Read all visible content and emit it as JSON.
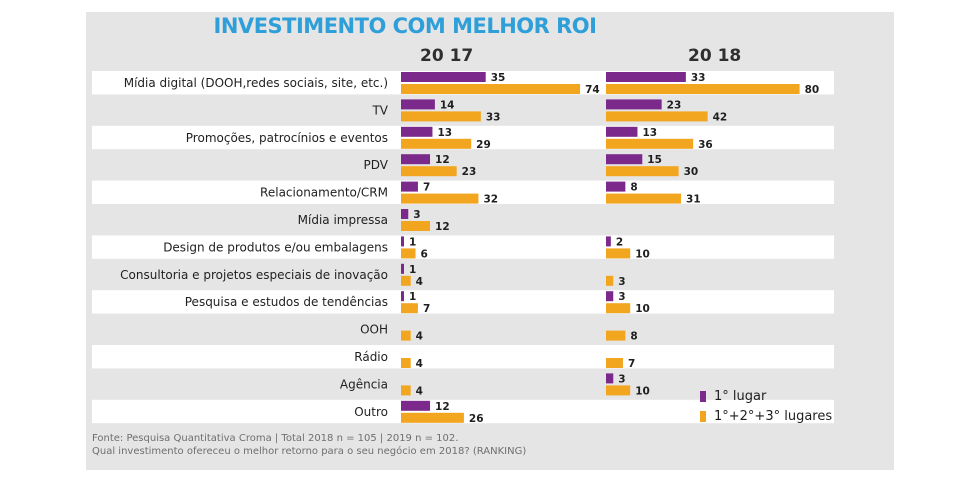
{
  "title": "INVESTIMENTO COM MELHOR ROI",
  "colors": {
    "first_place": "#7b2a8b",
    "top_three": "#f2a51f",
    "title": "#2e9fd9",
    "stripe": "#ffffff"
  },
  "legend": {
    "first_place": "1° lugar",
    "top_three": "1°+2°+3° lugares"
  },
  "source": {
    "line1": "Fonte: Pesquisa Quantitativa Croma | Total  2018 n = 105 | 2019 n = 102.",
    "line2": "Qual investimento ofereceu o melhor retorno para o seu negócio em 2018? (RANKING)"
  },
  "chart_data": {
    "type": "bar",
    "orientation": "horizontal",
    "title": "INVESTIMENTO COM MELHOR ROI",
    "categories": [
      "Mídia digital (DOOH,redes sociais, site, etc.)",
      "TV",
      "Promoções, patrocínios e eventos",
      "PDV",
      "Relacionamento/CRM",
      "Mídia impressa",
      "Design de produtos e/ou embalagens",
      "Consultoria e projetos especiais de inovação",
      "Pesquisa e estudos de tendências",
      "OOH",
      "Rádio",
      "Agência",
      "Outro"
    ],
    "panels": [
      {
        "year": "20 17",
        "series": [
          {
            "name": "1° lugar",
            "values": [
              35,
              14,
              13,
              12,
              7,
              3,
              1,
              1,
              1,
              null,
              null,
              null,
              12
            ]
          },
          {
            "name": "1°+2°+3° lugares",
            "values": [
              74,
              33,
              29,
              23,
              32,
              12,
              6,
              4,
              7,
              4,
              4,
              4,
              26
            ]
          }
        ]
      },
      {
        "year": "20 18",
        "series": [
          {
            "name": "1° lugar",
            "values": [
              33,
              23,
              13,
              15,
              8,
              null,
              2,
              null,
              3,
              null,
              null,
              3,
              null
            ]
          },
          {
            "name": "1°+2°+3° lugares",
            "values": [
              80,
              42,
              36,
              30,
              31,
              null,
              10,
              3,
              10,
              8,
              7,
              10,
              null
            ]
          }
        ]
      }
    ],
    "legend_position": "bottom-right",
    "grid": false
  }
}
